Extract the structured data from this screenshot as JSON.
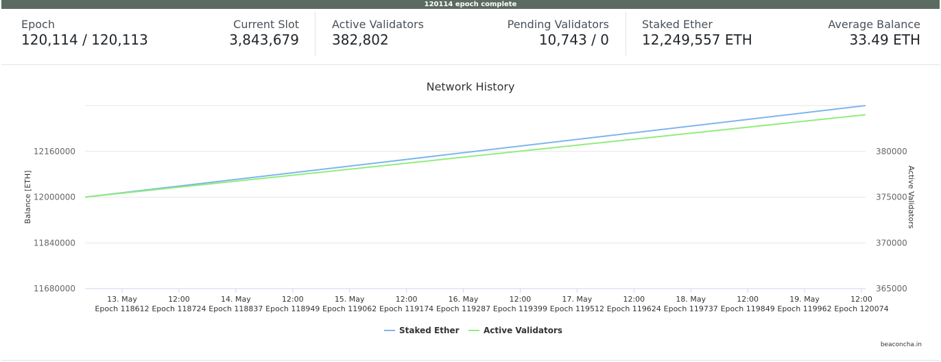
{
  "banner": "120114 epoch complete",
  "stats": {
    "epoch": {
      "label": "Epoch",
      "value": "120,114 / 120,113"
    },
    "current_slot": {
      "label": "Current Slot",
      "value": "3,843,679"
    },
    "active_validators": {
      "label": "Active Validators",
      "value": "382,802"
    },
    "pending_validators": {
      "label": "Pending Validators",
      "value": "10,743 / 0"
    },
    "staked_ether": {
      "label": "Staked Ether",
      "value": "12,249,557 ETH"
    },
    "average_balance": {
      "label": "Average Balance",
      "value": "33.49 ETH"
    }
  },
  "credit": "beaconcha.in",
  "chart_data": {
    "type": "line",
    "title": "Network History",
    "ylabel_left": "Balance [ETH]",
    "ylabel_right": "Active Validators",
    "y_left_ticks": [
      11680000,
      11840000,
      12000000,
      12160000
    ],
    "y_left_range": [
      11680000,
      12320000
    ],
    "y_right_ticks": [
      365000,
      370000,
      375000,
      380000
    ],
    "y_right_range": [
      365000,
      385000
    ],
    "x_ticks": [
      {
        "date": "13. May",
        "epoch": "Epoch 118612"
      },
      {
        "date": "12:00",
        "epoch": "Epoch 118724"
      },
      {
        "date": "14. May",
        "epoch": "Epoch 118837"
      },
      {
        "date": "12:00",
        "epoch": "Epoch 118949"
      },
      {
        "date": "15. May",
        "epoch": "Epoch 119062"
      },
      {
        "date": "12:00",
        "epoch": "Epoch 119174"
      },
      {
        "date": "16. May",
        "epoch": "Epoch 119287"
      },
      {
        "date": "12:00",
        "epoch": "Epoch 119399"
      },
      {
        "date": "17. May",
        "epoch": "Epoch 119512"
      },
      {
        "date": "12:00",
        "epoch": "Epoch 119624"
      },
      {
        "date": "18. May",
        "epoch": "Epoch 119737"
      },
      {
        "date": "12:00",
        "epoch": "Epoch 119849"
      },
      {
        "date": "19. May",
        "epoch": "Epoch 119962"
      },
      {
        "date": "12:00",
        "epoch": "Epoch 120074"
      }
    ],
    "x_range": [
      118570,
      120100
    ],
    "series": [
      {
        "name": "Staked Ether",
        "axis": "left",
        "color": "#7cb5ec",
        "x": [
          118570,
          120100
        ],
        "values": [
          12000000,
          12320000
        ]
      },
      {
        "name": "Active Validators",
        "axis": "right",
        "color": "#90ed7d",
        "x": [
          118570,
          120100
        ],
        "values": [
          375000,
          384000
        ]
      }
    ],
    "grid": true,
    "legend": "bottom-center"
  }
}
